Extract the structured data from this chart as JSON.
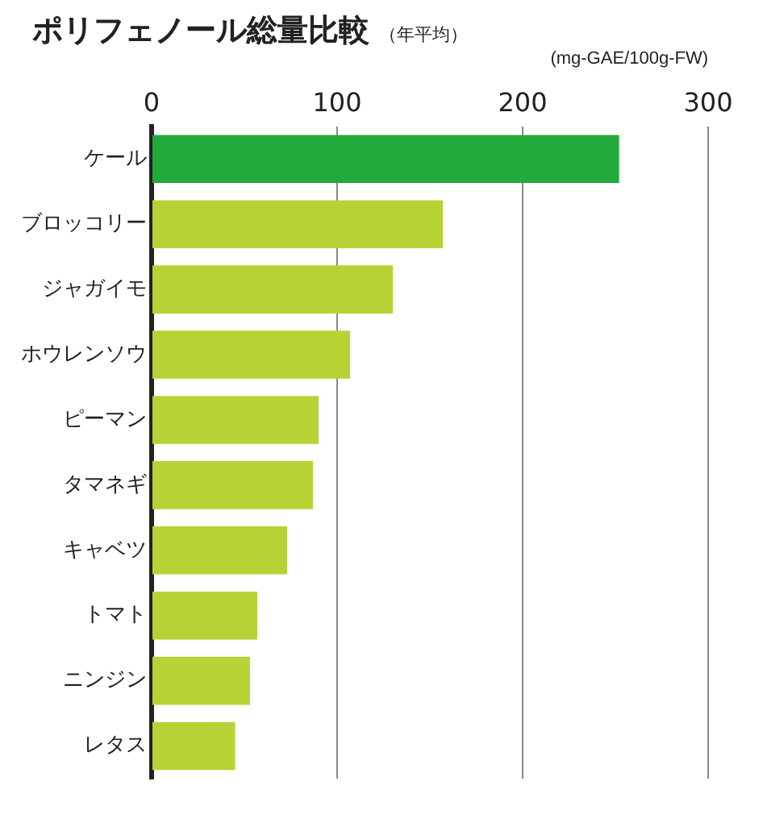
{
  "chart_data": {
    "type": "bar",
    "orientation": "horizontal",
    "title": "ポリフェノール総量比較",
    "subtitle": "（年平均）",
    "xlabel": "(mg-GAE/100g-FW)",
    "categories": [
      "ケール",
      "ブロッコリー",
      "ジャガイモ",
      "ホウレンソウ",
      "ピーマン",
      "タマネギ",
      "キャベツ",
      "トマト",
      "ニンジン",
      "レタス"
    ],
    "values": [
      252,
      157,
      130,
      107,
      90,
      87,
      73,
      57,
      53,
      45
    ],
    "colors": [
      "#22aa3c",
      "#b5d334",
      "#b5d334",
      "#b5d334",
      "#b5d334",
      "#b5d334",
      "#b5d334",
      "#b5d334",
      "#b5d334",
      "#b5d334"
    ],
    "xlim": [
      0,
      300
    ],
    "xticks": [
      0,
      100,
      200,
      300
    ],
    "grid": "x",
    "legend": false
  }
}
